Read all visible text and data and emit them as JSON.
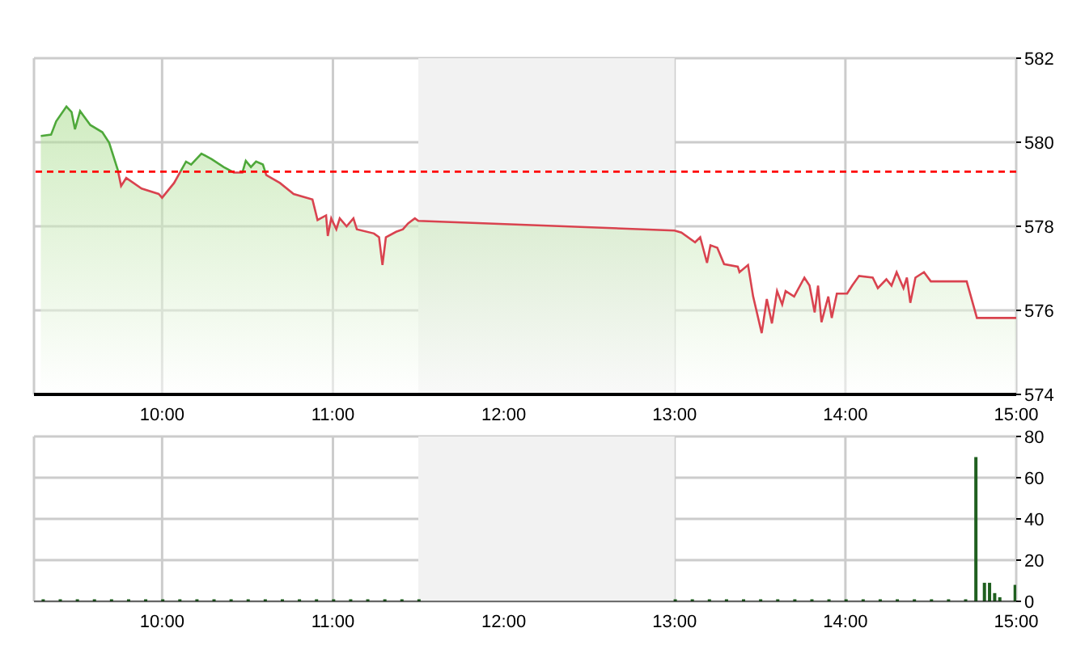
{
  "chart_data": [
    {
      "type": "area",
      "xlim": [
        9.25,
        15
      ],
      "xticks": [
        {
          "value": 10,
          "label": "10:00"
        },
        {
          "value": 11,
          "label": "11:00"
        },
        {
          "value": 12,
          "label": "12:00"
        },
        {
          "value": 13,
          "label": "13:00"
        },
        {
          "value": 14,
          "label": "14:00"
        },
        {
          "value": 15,
          "label": "15:00"
        }
      ],
      "ylim": [
        574,
        582
      ],
      "yticks": [
        574,
        576,
        578,
        580,
        582
      ],
      "grid": true,
      "x": [
        9.29,
        9.35,
        9.38,
        9.44,
        9.47,
        9.49,
        9.52,
        9.58,
        9.65,
        9.69,
        9.74,
        9.76,
        9.79,
        9.88,
        9.98,
        10.0,
        10.07,
        10.14,
        10.17,
        10.23,
        10.29,
        10.36,
        10.42,
        10.47,
        10.49,
        10.52,
        10.55,
        10.59,
        10.61,
        10.69,
        10.77,
        10.88,
        10.91,
        10.96,
        10.97,
        10.99,
        11.02,
        11.04,
        11.08,
        11.12,
        11.14,
        11.24,
        11.27,
        11.29,
        11.31,
        11.37,
        11.41,
        11.44,
        11.48,
        11.5,
        13.0,
        13.04,
        13.12,
        13.15,
        13.19,
        13.21,
        13.25,
        13.29,
        13.37,
        13.38,
        13.43,
        13.46,
        13.51,
        13.54,
        13.57,
        13.6,
        13.63,
        13.65,
        13.7,
        13.76,
        13.79,
        13.82,
        13.84,
        13.86,
        13.9,
        13.92,
        13.95,
        14.01,
        14.04,
        14.08,
        14.16,
        14.19,
        14.24,
        14.27,
        14.3,
        14.34,
        14.36,
        14.38,
        14.41,
        14.46,
        14.5,
        14.71,
        14.77,
        15.0
      ],
      "series": [
        {
          "color": "#d9434f",
          "values": [
            580.15,
            580.18,
            580.5,
            580.85,
            580.72,
            580.31,
            580.74,
            580.41,
            580.24,
            579.99,
            579.35,
            578.96,
            579.15,
            578.9,
            578.77,
            578.68,
            579.03,
            579.54,
            579.47,
            579.73,
            579.6,
            579.41,
            579.28,
            579.28,
            579.56,
            579.41,
            579.54,
            579.47,
            579.22,
            579.03,
            578.77,
            578.64,
            578.15,
            578.26,
            577.77,
            578.19,
            577.93,
            578.19,
            578.0,
            578.19,
            577.93,
            577.83,
            577.74,
            577.08,
            577.74,
            577.87,
            577.93,
            578.07,
            578.19,
            578.13,
            577.9,
            577.85,
            577.62,
            577.74,
            577.13,
            577.55,
            577.49,
            577.1,
            577.04,
            576.91,
            577.08,
            576.33,
            575.46,
            576.27,
            575.69,
            576.46,
            576.14,
            576.46,
            576.33,
            576.78,
            576.59,
            575.95,
            576.59,
            575.72,
            576.33,
            575.82,
            576.4,
            576.4,
            576.59,
            576.82,
            576.78,
            576.53,
            576.74,
            576.59,
            576.91,
            576.53,
            576.78,
            576.18,
            576.78,
            576.91,
            576.69,
            576.69,
            575.82,
            575.82
          ]
        }
      ],
      "bands": [
        {
          "axis": "x",
          "from": 11.5,
          "to": 13,
          "color": "#f2f2f2"
        }
      ],
      "ref_lines": [
        {
          "axis": "y",
          "value": 579.3,
          "color": "#ff0000",
          "line_style": "dashed"
        }
      ]
    },
    {
      "type": "bar",
      "xlim": [
        9.25,
        15
      ],
      "xticks": [
        {
          "value": 10,
          "label": "10:00"
        },
        {
          "value": 11,
          "label": "11:00"
        },
        {
          "value": 12,
          "label": "12:00"
        },
        {
          "value": 13,
          "label": "13:00"
        },
        {
          "value": 14,
          "label": "14:00"
        },
        {
          "value": 15,
          "label": "15:00"
        }
      ],
      "ylim": [
        0,
        80
      ],
      "yticks": [
        0,
        20,
        40,
        60,
        80
      ],
      "grid": true,
      "x": [
        9.3,
        9.4,
        9.5,
        9.6,
        9.7,
        9.8,
        9.9,
        10.0,
        10.1,
        10.2,
        10.3,
        10.4,
        10.5,
        10.6,
        10.7,
        10.8,
        10.9,
        11.0,
        11.1,
        11.2,
        11.3,
        11.4,
        11.5,
        13.0,
        13.1,
        13.2,
        13.3,
        13.4,
        13.5,
        13.6,
        13.7,
        13.8,
        13.9,
        14.0,
        14.1,
        14.2,
        14.3,
        14.4,
        14.5,
        14.6,
        14.7,
        14.76,
        14.81,
        14.84,
        14.87,
        14.9,
        14.99
      ],
      "series": [
        {
          "color": "#1f5f1f",
          "values": [
            1,
            1,
            1,
            1,
            1,
            1,
            1,
            1,
            1,
            1,
            1,
            1,
            1,
            1,
            1,
            1,
            1,
            1,
            1,
            1,
            1,
            1,
            1,
            1,
            1,
            1,
            1,
            1,
            1,
            1,
            1,
            1,
            1,
            1,
            1,
            1,
            1,
            1,
            1,
            1,
            1,
            70,
            9,
            9,
            4,
            2,
            8
          ]
        }
      ],
      "bands": [
        {
          "axis": "x",
          "from": 11.5,
          "to": 13,
          "color": "#f2f2f2"
        }
      ]
    }
  ]
}
